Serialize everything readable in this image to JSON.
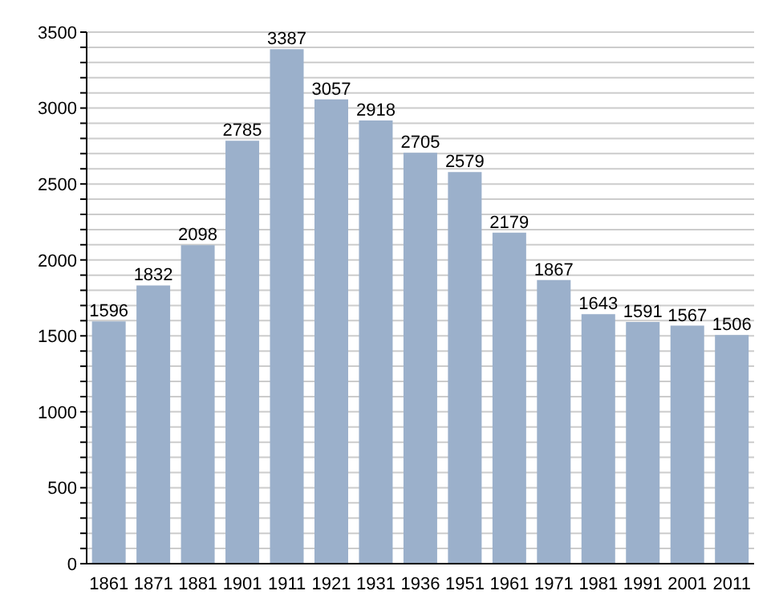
{
  "chart_data": {
    "type": "bar",
    "categories": [
      "1861",
      "1871",
      "1881",
      "1901",
      "1911",
      "1921",
      "1931",
      "1936",
      "1951",
      "1961",
      "1971",
      "1981",
      "1991",
      "2001",
      "2011"
    ],
    "values": [
      1596,
      1832,
      2098,
      2785,
      3387,
      3057,
      2918,
      2705,
      2579,
      2179,
      1867,
      1643,
      1591,
      1567,
      1506
    ],
    "color": "#9bb0cb",
    "data_labels": true,
    "grid": "y",
    "ylim": [
      0,
      3500
    ],
    "yticks": [
      0,
      {
        "value": 100,
        "label": null
      },
      {
        "value": 200,
        "label": null
      },
      {
        "value": 300,
        "label": null
      },
      {
        "value": 400,
        "label": null
      },
      500,
      {
        "value": 600,
        "label": null
      },
      {
        "value": 700,
        "label": null
      },
      {
        "value": 800,
        "label": null
      },
      {
        "value": 900,
        "label": null
      },
      1000,
      {
        "value": 1100,
        "label": null
      },
      {
        "value": 1200,
        "label": null
      },
      {
        "value": 1300,
        "label": null
      },
      {
        "value": 1400,
        "label": null
      },
      1500,
      {
        "value": 1600,
        "label": null
      },
      {
        "value": 1700,
        "label": null
      },
      {
        "value": 1800,
        "label": null
      },
      {
        "value": 1900,
        "label": null
      },
      2000,
      {
        "value": 2100,
        "label": null
      },
      {
        "value": 2200,
        "label": null
      },
      {
        "value": 2300,
        "label": null
      },
      {
        "value": 2400,
        "label": null
      },
      2500,
      {
        "value": 2600,
        "label": null
      },
      {
        "value": 2700,
        "label": null
      },
      {
        "value": 2800,
        "label": null
      },
      {
        "value": 2900,
        "label": null
      },
      3000,
      {
        "value": 3100,
        "label": null
      },
      {
        "value": 3200,
        "label": null
      },
      {
        "value": 3300,
        "label": null
      },
      {
        "value": 3400,
        "label": null
      },
      3500
    ]
  }
}
